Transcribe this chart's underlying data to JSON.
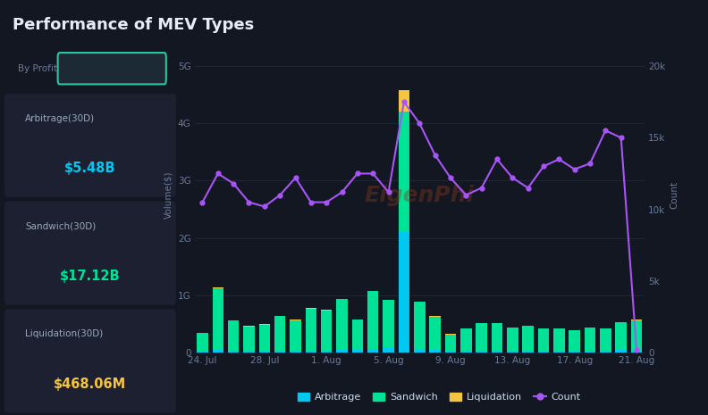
{
  "title": "Performance of MEV Types",
  "bg_color": "#131722",
  "panel_bg": "#1c2030",
  "chart_bg": "#131722",
  "x_labels": [
    "24. Jul",
    "28. Jul",
    "1. Aug",
    "5. Aug",
    "9. Aug",
    "13. Aug",
    "17. Aug",
    "21. Aug"
  ],
  "n_bars": 29,
  "arbitrage_bars": [
    0.04,
    0.05,
    0.04,
    0.03,
    0.04,
    0.04,
    0.04,
    0.04,
    0.04,
    0.05,
    0.05,
    0.07,
    0.1,
    2.1,
    0.07,
    0.05,
    0.04,
    0.04,
    0.03,
    0.04,
    0.04,
    0.04,
    0.04,
    0.04,
    0.03,
    0.04,
    0.04,
    0.05,
    0.04
  ],
  "sandwich_bars": [
    0.3,
    1.08,
    0.52,
    0.43,
    0.45,
    0.6,
    0.53,
    0.73,
    0.7,
    0.88,
    0.53,
    1.0,
    0.82,
    2.1,
    0.82,
    0.58,
    0.28,
    0.38,
    0.48,
    0.48,
    0.4,
    0.43,
    0.38,
    0.38,
    0.36,
    0.4,
    0.38,
    0.48,
    0.53
  ],
  "liquidation_bars": [
    0.005,
    0.005,
    0.005,
    0.005,
    0.005,
    0.005,
    0.005,
    0.005,
    0.005,
    0.005,
    0.005,
    0.005,
    0.005,
    0.38,
    0.005,
    0.005,
    0.005,
    0.005,
    0.005,
    0.005,
    0.005,
    0.005,
    0.005,
    0.005,
    0.005,
    0.005,
    0.005,
    0.005,
    0.005
  ],
  "count_line": [
    10500,
    12500,
    11800,
    10500,
    10200,
    11000,
    12200,
    10500,
    10500,
    11200,
    12500,
    12500,
    11200,
    17500,
    16000,
    13800,
    12200,
    11000,
    11500,
    13500,
    12200,
    11500,
    13000,
    13500,
    12800,
    13200,
    15500,
    15000,
    200
  ],
  "arb_color": "#00c8f0",
  "sandwich_color": "#00e396",
  "liquidation_color": "#f5c542",
  "count_color": "#a855f7",
  "ylim_max": 5.5,
  "yticks": [
    0,
    1,
    2,
    3,
    4,
    5
  ],
  "ytick_labels": [
    "0",
    "1G",
    "2G",
    "3G",
    "4G",
    "5G"
  ],
  "y2lim_max": 22000,
  "y2ticks": [
    0,
    5000,
    10000,
    15000,
    20000
  ],
  "y2tick_labels": [
    "0",
    "5k",
    "10k",
    "15k",
    "20k"
  ],
  "tick_color": "#6b7a99",
  "grid_color": "#252d3d",
  "ylabel": "Volume($)",
  "y2label": "Count",
  "title_color": "#e8eaf6",
  "title_fontsize": 13,
  "left_panel_items": [
    {
      "label": "Arbitrage(30D)",
      "value": "$5.48B",
      "value_color": "#00c8f0"
    },
    {
      "label": "Sandwich(30D)",
      "value": "$17.12B",
      "value_color": "#00e396"
    },
    {
      "label": "Liquidation(30D)",
      "value": "$468.06M",
      "value_color": "#f5c542"
    }
  ],
  "button_border_color": "#2ec4a0",
  "button_bg": "#1c2a35",
  "watermark": "EigenPhi",
  "watermark_color": "#8b3a1a",
  "watermark_alpha": 0.4
}
